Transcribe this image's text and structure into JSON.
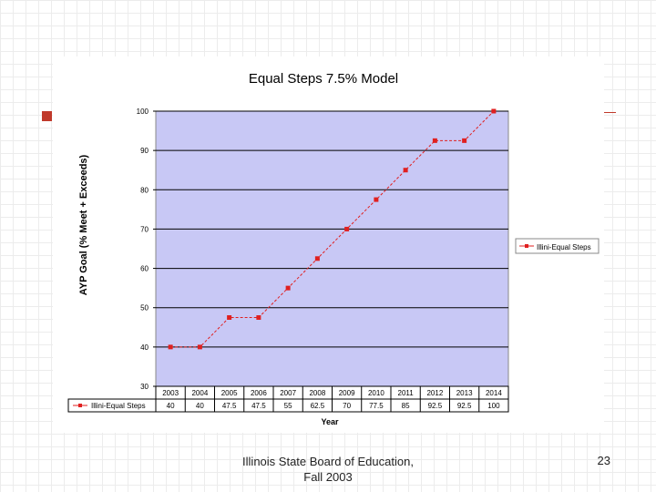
{
  "colors": {
    "accent": "#c0392b",
    "plot_background": "#c8c8f5",
    "series": "#e02020"
  },
  "legend": {
    "label": "Illini-Equal Steps"
  },
  "footer": {
    "line1": "Illinois State Board of Education,",
    "line2": "Fall 2003",
    "slide_number": "23"
  },
  "chart_data": {
    "type": "line",
    "title": "Equal Steps 7.5% Model",
    "xlabel": "Year",
    "ylabel": "AYP Goal (% Meet + Exceeds)",
    "ylim": [
      30,
      100
    ],
    "yticks": [
      30,
      40,
      50,
      60,
      70,
      80,
      90,
      100
    ],
    "grid": true,
    "legend_position": "right",
    "categories": [
      "2003",
      "2004",
      "2005",
      "2006",
      "2007",
      "2008",
      "2009",
      "2010",
      "2011",
      "2012",
      "2013",
      "2014"
    ],
    "series": [
      {
        "name": "Illini-Equal Steps",
        "values": [
          40,
          40,
          47.5,
          47.5,
          55,
          62.5,
          70,
          77.5,
          85,
          92.5,
          92.5,
          100
        ],
        "value_labels": [
          "40",
          "40",
          "47.5",
          "47.5",
          "55",
          "62.5",
          "70",
          "77.5",
          "85",
          "92.5",
          "92.5",
          "100"
        ]
      }
    ]
  }
}
